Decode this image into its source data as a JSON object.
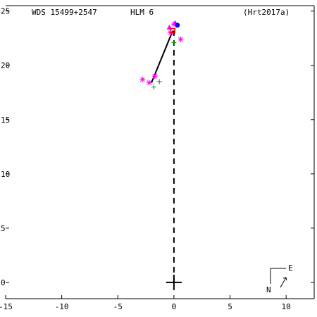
{
  "header": {
    "left": "WDS 15499+2547",
    "center": "HLM   6",
    "right": "(Hrt2017a)"
  },
  "compass": {
    "north": "N",
    "east": "E"
  },
  "chart_data": {
    "type": "scatter",
    "title": "",
    "xlim": [
      -15,
      12.5
    ],
    "ylim": [
      -1.5,
      25.5
    ],
    "x_ticks": [
      -15,
      -10,
      -5,
      0,
      5,
      10
    ],
    "x_tick_labels": [
      "-15",
      "-10",
      "-5",
      "0",
      "5",
      "10"
    ],
    "y_ticks": [
      0,
      5,
      10,
      15,
      20,
      25
    ],
    "y_tick_labels": [
      "0",
      "5",
      "10",
      "15",
      "20",
      "25"
    ],
    "grid": false,
    "primary_star": {
      "x": 0,
      "y": 0
    },
    "series": [
      {
        "marker": "plus",
        "color": "#00a000",
        "points": [
          [
            -1.8,
            18.0
          ],
          [
            -1.3,
            18.5
          ],
          [
            0.0,
            22.1
          ]
        ]
      },
      {
        "marker": "asterisk",
        "color": "#ff00ff",
        "points": [
          [
            -2.8,
            18.7
          ],
          [
            -2.2,
            18.4
          ],
          [
            -1.7,
            19.0
          ],
          [
            0.6,
            22.4
          ],
          [
            0.0,
            23.8
          ],
          [
            -0.3,
            23.0
          ]
        ]
      },
      {
        "marker": "triangle",
        "color": "#ff00ff",
        "points": [
          [
            -0.4,
            23.5
          ],
          [
            0.1,
            23.9
          ]
        ]
      },
      {
        "marker": "square",
        "color": "#ff0000",
        "points": [
          [
            -0.1,
            23.2
          ]
        ]
      },
      {
        "marker": "dot",
        "color": "#0000ff",
        "points": [
          [
            0.3,
            23.7
          ]
        ]
      }
    ],
    "orbit_segment": [
      [
        -2.0,
        18.4
      ],
      [
        -0.1,
        23.2
      ]
    ],
    "node_line": {
      "x": 0,
      "y_from": 0,
      "y_to": 23.2
    }
  }
}
